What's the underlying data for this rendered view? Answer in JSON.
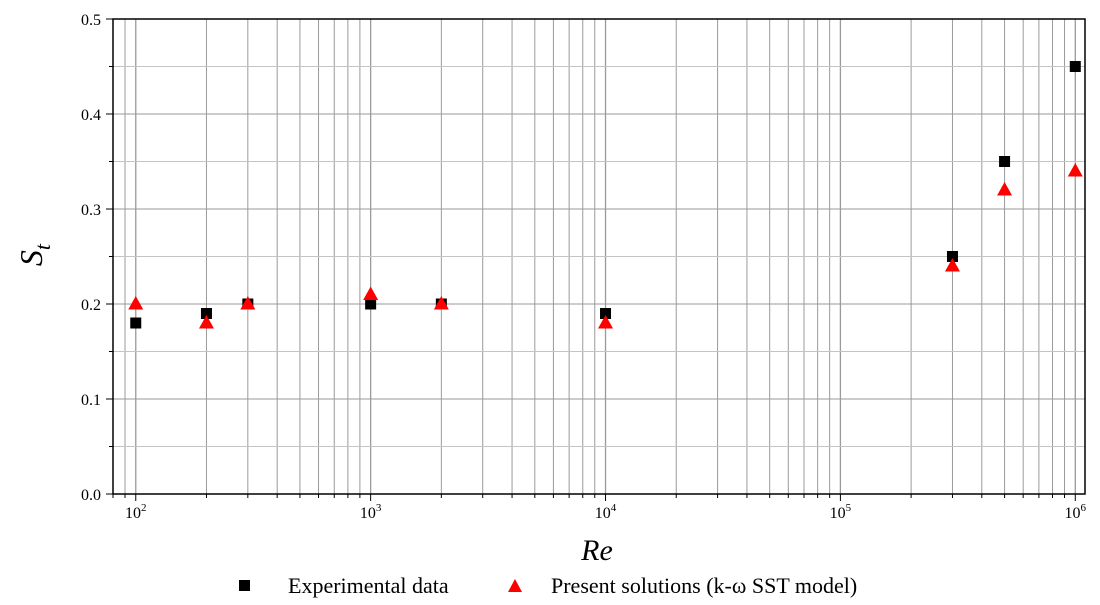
{
  "chart_data": {
    "type": "scatter",
    "xscale": "log",
    "xlim": [
      80,
      1100000
    ],
    "ylim": [
      0.0,
      0.5
    ],
    "grid": true,
    "legend_position": "bottom",
    "xlabel": "Re",
    "ylabel": {
      "main": "S",
      "sub": "t"
    },
    "x_ticks": [
      {
        "value": 100,
        "base": "10",
        "exp": "2"
      },
      {
        "value": 1000,
        "base": "10",
        "exp": "3"
      },
      {
        "value": 10000,
        "base": "10",
        "exp": "4"
      },
      {
        "value": 100000,
        "base": "10",
        "exp": "5"
      },
      {
        "value": 1000000,
        "base": "10",
        "exp": "6"
      }
    ],
    "y_ticks": [
      {
        "value": 0.0,
        "label": "0.0"
      },
      {
        "value": 0.1,
        "label": "0.1"
      },
      {
        "value": 0.2,
        "label": "0.2"
      },
      {
        "value": 0.3,
        "label": "0.3"
      },
      {
        "value": 0.4,
        "label": "0.4"
      },
      {
        "value": 0.5,
        "label": "0.5"
      }
    ],
    "series": [
      {
        "name": "Experimental data",
        "marker": "square",
        "color": "#000000",
        "points": [
          {
            "x": 100,
            "y": 0.18
          },
          {
            "x": 200,
            "y": 0.19
          },
          {
            "x": 300,
            "y": 0.2
          },
          {
            "x": 1000,
            "y": 0.2
          },
          {
            "x": 2000,
            "y": 0.2
          },
          {
            "x": 10000,
            "y": 0.19
          },
          {
            "x": 300000,
            "y": 0.25
          },
          {
            "x": 500000,
            "y": 0.35
          },
          {
            "x": 1000000,
            "y": 0.45
          }
        ]
      },
      {
        "name": "Present solutions (k-ω SST model)",
        "marker": "triangle",
        "color": "#ff0000",
        "points": [
          {
            "x": 100,
            "y": 0.2
          },
          {
            "x": 200,
            "y": 0.18
          },
          {
            "x": 300,
            "y": 0.2
          },
          {
            "x": 1000,
            "y": 0.21
          },
          {
            "x": 2000,
            "y": 0.2
          },
          {
            "x": 10000,
            "y": 0.18
          },
          {
            "x": 300000,
            "y": 0.24
          },
          {
            "x": 500000,
            "y": 0.32
          },
          {
            "x": 1000000,
            "y": 0.34
          }
        ]
      }
    ]
  }
}
